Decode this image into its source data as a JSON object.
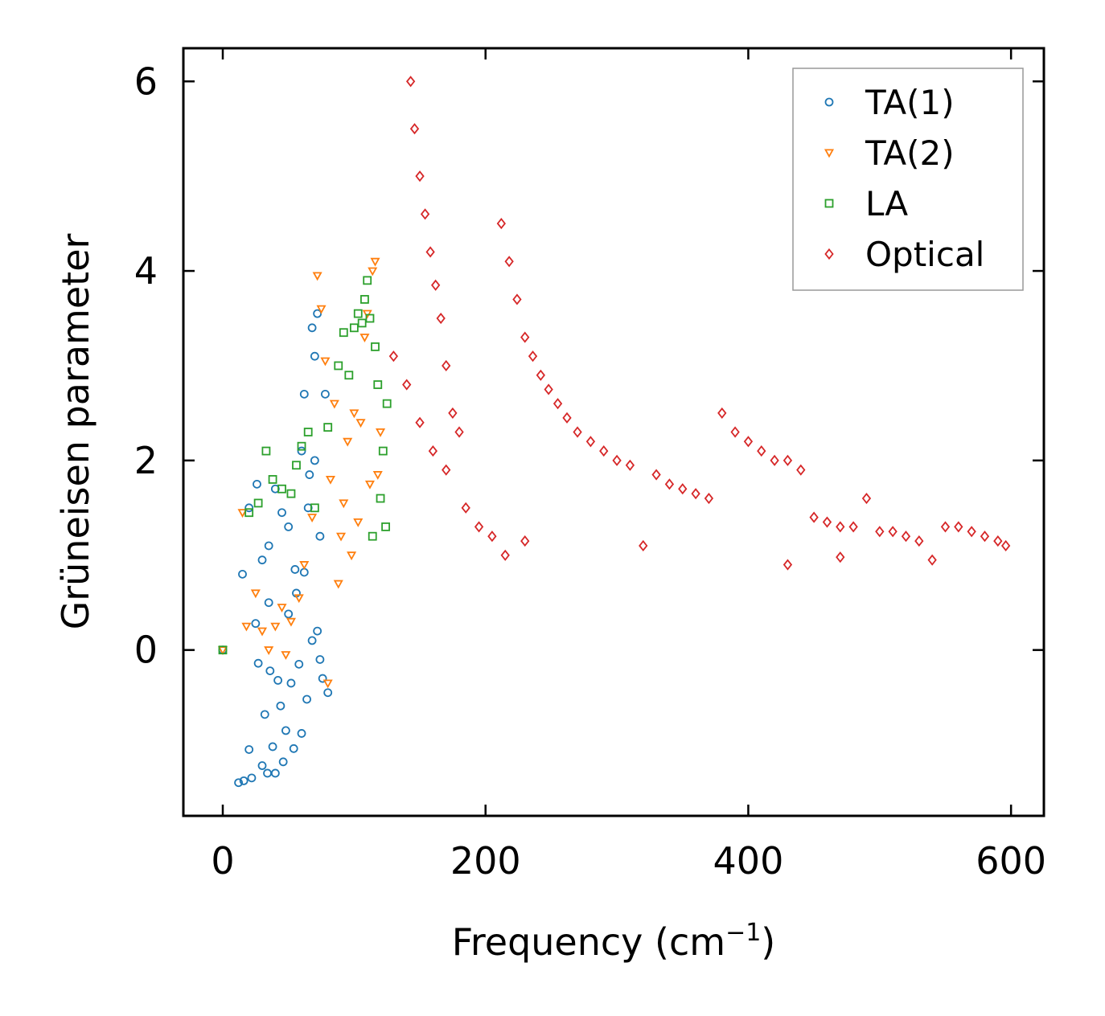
{
  "chart_data": {
    "type": "scatter",
    "xlabel": "Frequency (cm",
    "xlabel_sup": "−1",
    "xlabel_end": ")",
    "ylabel": "Grüneisen parameter",
    "xlim": [
      -30,
      625
    ],
    "ylim": [
      -1.75,
      6.35
    ],
    "xticks": [
      0,
      200,
      400,
      600
    ],
    "xtick_labels": [
      "0",
      "200",
      "400",
      "600"
    ],
    "yticks": [
      0,
      2,
      4,
      6
    ],
    "ytick_labels": [
      "0",
      "2",
      "4",
      "6"
    ],
    "legend_position": "top-right",
    "series": [
      {
        "name": "TA(1)",
        "marker": "circle",
        "color": "#1f77b4",
        "points": [
          [
            0,
            0
          ],
          [
            12,
            -1.4
          ],
          [
            16,
            -1.38
          ],
          [
            20,
            -1.05
          ],
          [
            22,
            -1.35
          ],
          [
            25,
            0.28
          ],
          [
            27,
            -0.14
          ],
          [
            30,
            -1.22
          ],
          [
            32,
            -0.68
          ],
          [
            34,
            -1.3
          ],
          [
            35,
            1.1
          ],
          [
            36,
            -0.22
          ],
          [
            38,
            -1.02
          ],
          [
            40,
            -1.3
          ],
          [
            42,
            -0.32
          ],
          [
            44,
            -0.59
          ],
          [
            46,
            -1.18
          ],
          [
            48,
            -0.85
          ],
          [
            50,
            0.38
          ],
          [
            52,
            -0.35
          ],
          [
            54,
            -1.04
          ],
          [
            56,
            0.6
          ],
          [
            58,
            -0.15
          ],
          [
            60,
            -0.88
          ],
          [
            62,
            0.82
          ],
          [
            64,
            -0.52
          ],
          [
            65,
            1.5
          ],
          [
            66,
            1.85
          ],
          [
            68,
            0.1
          ],
          [
            70,
            2.0
          ],
          [
            72,
            3.55
          ],
          [
            74,
            1.2
          ],
          [
            76,
            -0.3
          ],
          [
            78,
            2.7
          ],
          [
            80,
            -0.45
          ],
          [
            15,
            0.8
          ],
          [
            20,
            1.5
          ],
          [
            26,
            1.75
          ],
          [
            30,
            0.95
          ],
          [
            35,
            0.5
          ],
          [
            40,
            1.7
          ],
          [
            45,
            1.45
          ],
          [
            50,
            1.3
          ],
          [
            55,
            0.85
          ],
          [
            60,
            2.1
          ],
          [
            62,
            2.7
          ],
          [
            68,
            3.4
          ],
          [
            70,
            3.1
          ],
          [
            72,
            0.2
          ],
          [
            74,
            -0.1
          ]
        ]
      },
      {
        "name": "TA(2)",
        "marker": "triangle-down",
        "color": "#ff7f0e",
        "points": [
          [
            0,
            0
          ],
          [
            15,
            1.45
          ],
          [
            18,
            0.25
          ],
          [
            25,
            0.6
          ],
          [
            30,
            0.2
          ],
          [
            35,
            0.0
          ],
          [
            40,
            0.25
          ],
          [
            45,
            0.45
          ],
          [
            48,
            -0.05
          ],
          [
            52,
            0.3
          ],
          [
            58,
            0.55
          ],
          [
            62,
            0.9
          ],
          [
            68,
            1.4
          ],
          [
            72,
            3.95
          ],
          [
            75,
            3.6
          ],
          [
            78,
            3.05
          ],
          [
            80,
            -0.35
          ],
          [
            82,
            1.8
          ],
          [
            85,
            2.6
          ],
          [
            88,
            0.7
          ],
          [
            90,
            1.2
          ],
          [
            92,
            1.55
          ],
          [
            95,
            2.2
          ],
          [
            98,
            1.0
          ],
          [
            100,
            2.5
          ],
          [
            103,
            1.35
          ],
          [
            105,
            2.4
          ],
          [
            108,
            3.3
          ],
          [
            110,
            3.55
          ],
          [
            112,
            1.75
          ],
          [
            114,
            4.0
          ],
          [
            116,
            4.1
          ],
          [
            118,
            1.85
          ],
          [
            120,
            2.3
          ]
        ]
      },
      {
        "name": "LA",
        "marker": "square",
        "color": "#2ca02c",
        "points": [
          [
            0,
            0
          ],
          [
            20,
            1.45
          ],
          [
            27,
            1.55
          ],
          [
            33,
            2.1
          ],
          [
            38,
            1.8
          ],
          [
            45,
            1.7
          ],
          [
            52,
            1.65
          ],
          [
            56,
            1.95
          ],
          [
            60,
            2.15
          ],
          [
            65,
            2.3
          ],
          [
            70,
            1.5
          ],
          [
            80,
            2.35
          ],
          [
            88,
            3.0
          ],
          [
            92,
            3.35
          ],
          [
            96,
            2.9
          ],
          [
            100,
            3.4
          ],
          [
            103,
            3.55
          ],
          [
            106,
            3.45
          ],
          [
            108,
            3.7
          ],
          [
            110,
            3.9
          ],
          [
            112,
            3.5
          ],
          [
            114,
            1.2
          ],
          [
            116,
            3.2
          ],
          [
            118,
            2.8
          ],
          [
            120,
            1.6
          ],
          [
            122,
            2.1
          ],
          [
            124,
            1.3
          ],
          [
            125,
            2.6
          ]
        ]
      },
      {
        "name": "Optical",
        "marker": "diamond",
        "color": "#d62728",
        "points": [
          [
            143,
            6.0
          ],
          [
            146,
            5.5
          ],
          [
            150,
            5.0
          ],
          [
            154,
            4.6
          ],
          [
            158,
            4.2
          ],
          [
            162,
            3.85
          ],
          [
            166,
            3.5
          ],
          [
            170,
            3.0
          ],
          [
            175,
            2.5
          ],
          [
            180,
            2.3
          ],
          [
            130,
            3.1
          ],
          [
            140,
            2.8
          ],
          [
            150,
            2.4
          ],
          [
            160,
            2.1
          ],
          [
            170,
            1.9
          ],
          [
            185,
            1.5
          ],
          [
            195,
            1.3
          ],
          [
            205,
            1.2
          ],
          [
            215,
            1.0
          ],
          [
            230,
            1.15
          ],
          [
            212,
            4.5
          ],
          [
            218,
            4.1
          ],
          [
            224,
            3.7
          ],
          [
            230,
            3.3
          ],
          [
            236,
            3.1
          ],
          [
            242,
            2.9
          ],
          [
            248,
            2.75
          ],
          [
            255,
            2.6
          ],
          [
            262,
            2.45
          ],
          [
            270,
            2.3
          ],
          [
            280,
            2.2
          ],
          [
            290,
            2.1
          ],
          [
            300,
            2.0
          ],
          [
            310,
            1.95
          ],
          [
            320,
            1.1
          ],
          [
            330,
            1.85
          ],
          [
            340,
            1.75
          ],
          [
            350,
            1.7
          ],
          [
            360,
            1.65
          ],
          [
            370,
            1.6
          ],
          [
            380,
            2.5
          ],
          [
            390,
            2.3
          ],
          [
            400,
            2.2
          ],
          [
            410,
            2.1
          ],
          [
            420,
            2.0
          ],
          [
            430,
            2.0
          ],
          [
            440,
            1.9
          ],
          [
            450,
            1.4
          ],
          [
            460,
            1.35
          ],
          [
            470,
            1.3
          ],
          [
            480,
            1.3
          ],
          [
            490,
            1.6
          ],
          [
            500,
            1.25
          ],
          [
            510,
            1.25
          ],
          [
            520,
            1.2
          ],
          [
            530,
            1.15
          ],
          [
            540,
            0.95
          ],
          [
            550,
            1.3
          ],
          [
            560,
            1.3
          ],
          [
            570,
            1.25
          ],
          [
            580,
            1.2
          ],
          [
            590,
            1.15
          ],
          [
            596,
            1.1
          ],
          [
            430,
            0.9
          ],
          [
            470,
            0.98
          ]
        ]
      }
    ]
  }
}
